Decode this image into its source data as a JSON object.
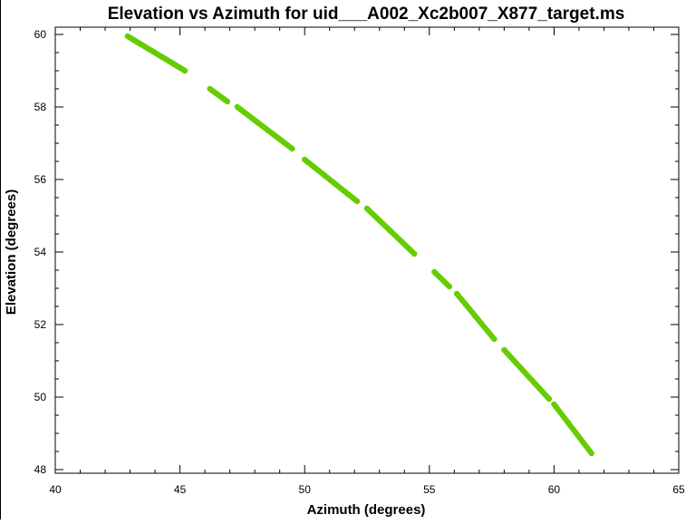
{
  "chart_data": {
    "type": "scatter",
    "title": "Elevation vs Azimuth for uid___A002_Xc2b007_X877_target.ms",
    "xlabel": "Azimuth (degrees)",
    "ylabel": "Elevation (degrees)",
    "xlim": [
      40,
      65
    ],
    "ylim": [
      47.9,
      60.2
    ],
    "xticks": [
      40,
      45,
      50,
      55,
      60,
      65
    ],
    "yticks": [
      48,
      50,
      52,
      54,
      56,
      58,
      60
    ],
    "x_minor_step": 1,
    "y_minor_step": 0.5,
    "grid": false,
    "legend": "none",
    "point_color": "#66cc00",
    "segments": [
      {
        "x": [
          42.9,
          45.2
        ],
        "y": [
          59.95,
          59.0
        ]
      },
      {
        "x": [
          46.2,
          46.9
        ],
        "y": [
          58.5,
          58.15
        ]
      },
      {
        "x": [
          47.3,
          49.5
        ],
        "y": [
          58.0,
          56.85
        ]
      },
      {
        "x": [
          50.0,
          52.1
        ],
        "y": [
          56.55,
          55.4
        ]
      },
      {
        "x": [
          52.5,
          54.4
        ],
        "y": [
          55.2,
          53.95
        ]
      },
      {
        "x": [
          55.2,
          55.8
        ],
        "y": [
          53.45,
          53.05
        ]
      },
      {
        "x": [
          56.1,
          57.6
        ],
        "y": [
          52.85,
          51.6
        ]
      },
      {
        "x": [
          58.0,
          59.8
        ],
        "y": [
          51.3,
          49.95
        ]
      },
      {
        "x": [
          60.0,
          61.5
        ],
        "y": [
          49.8,
          48.45
        ]
      }
    ]
  }
}
